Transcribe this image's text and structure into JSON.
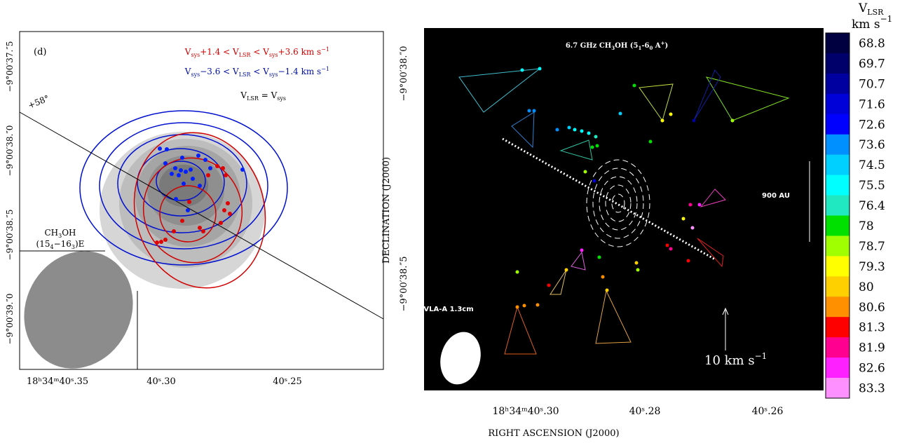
{
  "left_panel": {
    "panel_label": "(d)",
    "legend": [
      {
        "color": "#d00000",
        "parts": [
          "V",
          "sys",
          "+1.4 < V",
          "LSR",
          " < V",
          "sys",
          "+3.6  km s",
          "−1"
        ]
      },
      {
        "color": "#0010a0",
        "parts": [
          "V",
          "sys",
          "−3.6 < V",
          "LSR",
          " < V",
          "sys",
          "−1.4  km s",
          "−1"
        ]
      },
      {
        "color": "#000000",
        "parts": [
          "V",
          "LSR",
          " = V",
          "sys"
        ]
      }
    ],
    "angle_label": "+58°",
    "species": [
      "CH",
      "3",
      "OH"
    ],
    "transition": [
      "(15",
      "4",
      "−16",
      "3",
      ")E"
    ],
    "y_ticks": [
      "−9°00′37.″5",
      "−9°00′38.″0",
      "−9°00′38.″5",
      "−9°00′39.″0"
    ],
    "x_ticks": [
      "18ʰ34ᵐ40ˢ.35",
      "40ˢ.30",
      "40ˢ.25"
    ]
  },
  "right_panel": {
    "title": [
      "6.7 GHz CH",
      "3",
      "OH (5",
      "1",
      "-6",
      "0",
      " A",
      "+",
      ")"
    ],
    "y_axis_label": "DECLINATION (J2000)",
    "x_axis_label": "RIGHT ASCENSION (J2000)",
    "y_ticks": [
      "−9°00′38.″0",
      "−9°00′38.″5"
    ],
    "x_ticks": [
      "18ʰ34ᵐ40ˢ.30",
      "40ˢ.28",
      "40ˢ.26"
    ],
    "scale_label": "900 AU",
    "telescope": "VLA-A 1.3cm",
    "velocity_scale": [
      "10 km s",
      "−1"
    ]
  },
  "colorbar": {
    "title": [
      "V",
      "LSR"
    ],
    "unit": [
      "km s",
      "−1"
    ],
    "labels": [
      "68.8",
      "69.7",
      "70.7",
      "71.6",
      "72.6",
      "73.6",
      "74.5",
      "75.5",
      "76.4",
      "78",
      "78.7",
      "79.3",
      "80",
      "80.6",
      "81.3",
      "81.9",
      "82.6",
      "83.3"
    ],
    "colors": [
      "#000040",
      "#00006a",
      "#0000a0",
      "#0000d8",
      "#0000ff",
      "#0090ff",
      "#00d0ff",
      "#00ffff",
      "#20e8c0",
      "#00e000",
      "#a0ff00",
      "#ffff00",
      "#ffd000",
      "#ff9000",
      "#ff0000",
      "#ff0090",
      "#ff20ff",
      "#ff90ff"
    ]
  }
}
